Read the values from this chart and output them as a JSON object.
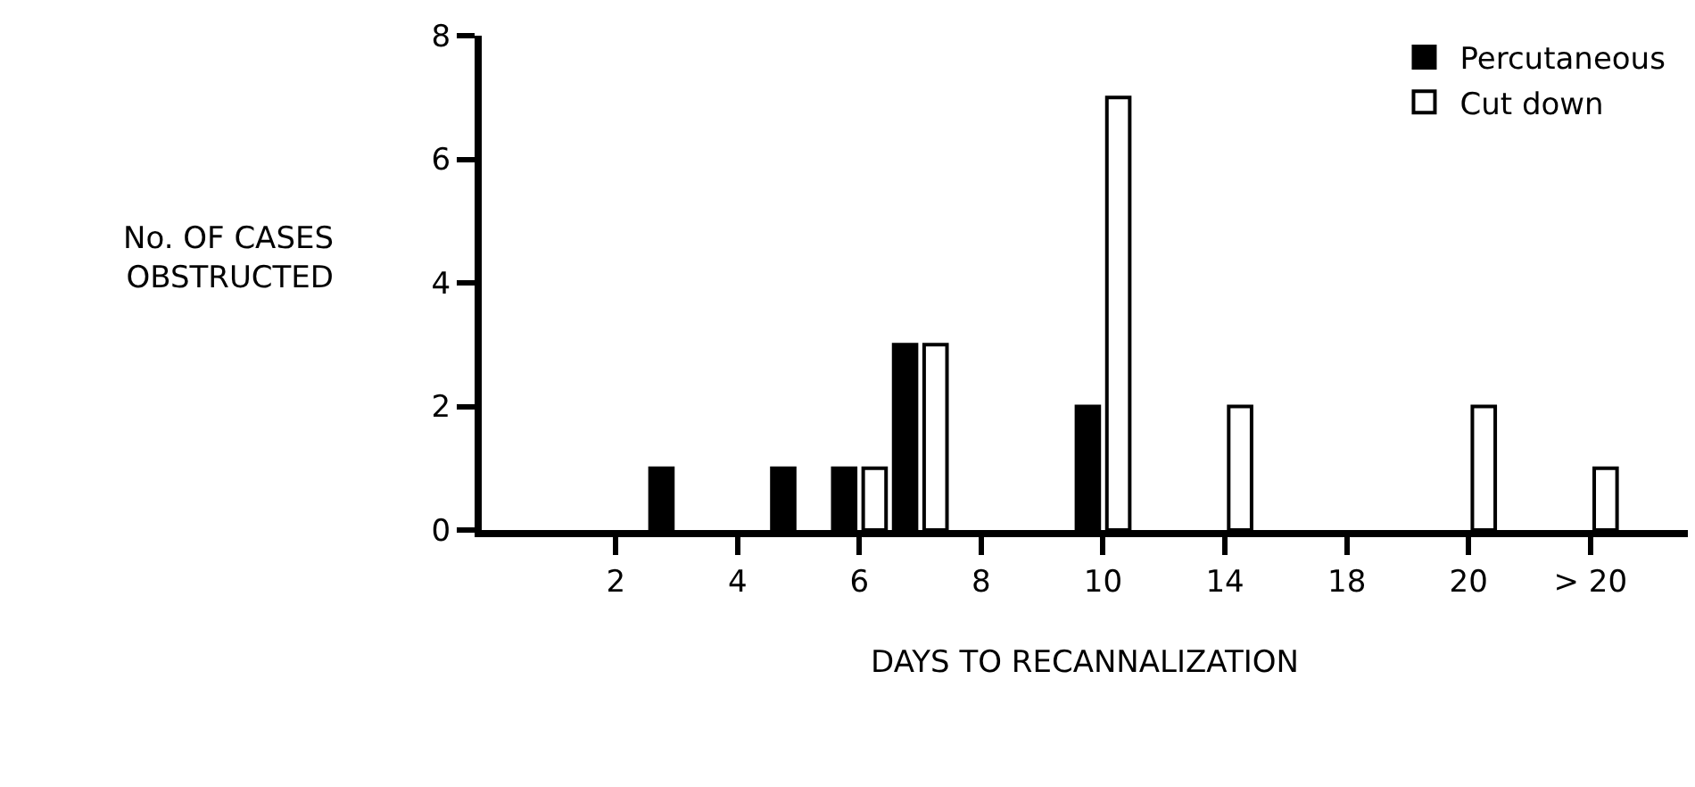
{
  "chart_data": {
    "type": "bar",
    "xlabel": "DAYS TO RECANNALIZATION",
    "ylabel": "No. OF CASES\nOBSTRUCTED",
    "categories": [
      "2",
      null,
      "4",
      null,
      "6",
      null,
      "8",
      null,
      "10",
      null,
      "14",
      null,
      "18",
      null,
      "20",
      null,
      "> 20"
    ],
    "series": [
      {
        "name": "Percutaneous",
        "color": "#000000",
        "values": [
          null,
          1,
          null,
          1,
          1,
          3,
          null,
          null,
          2,
          null,
          null,
          null,
          null,
          null,
          null,
          null,
          null
        ]
      },
      {
        "name": "Cut down",
        "color": "#ffffff",
        "values": [
          null,
          null,
          null,
          null,
          1,
          3,
          null,
          null,
          7,
          null,
          2,
          null,
          null,
          null,
          2,
          null,
          1
        ]
      }
    ],
    "ylim": [
      0,
      8
    ],
    "yticks": [
      0,
      2,
      4,
      6,
      8
    ],
    "grid": false,
    "legend": "top right"
  }
}
